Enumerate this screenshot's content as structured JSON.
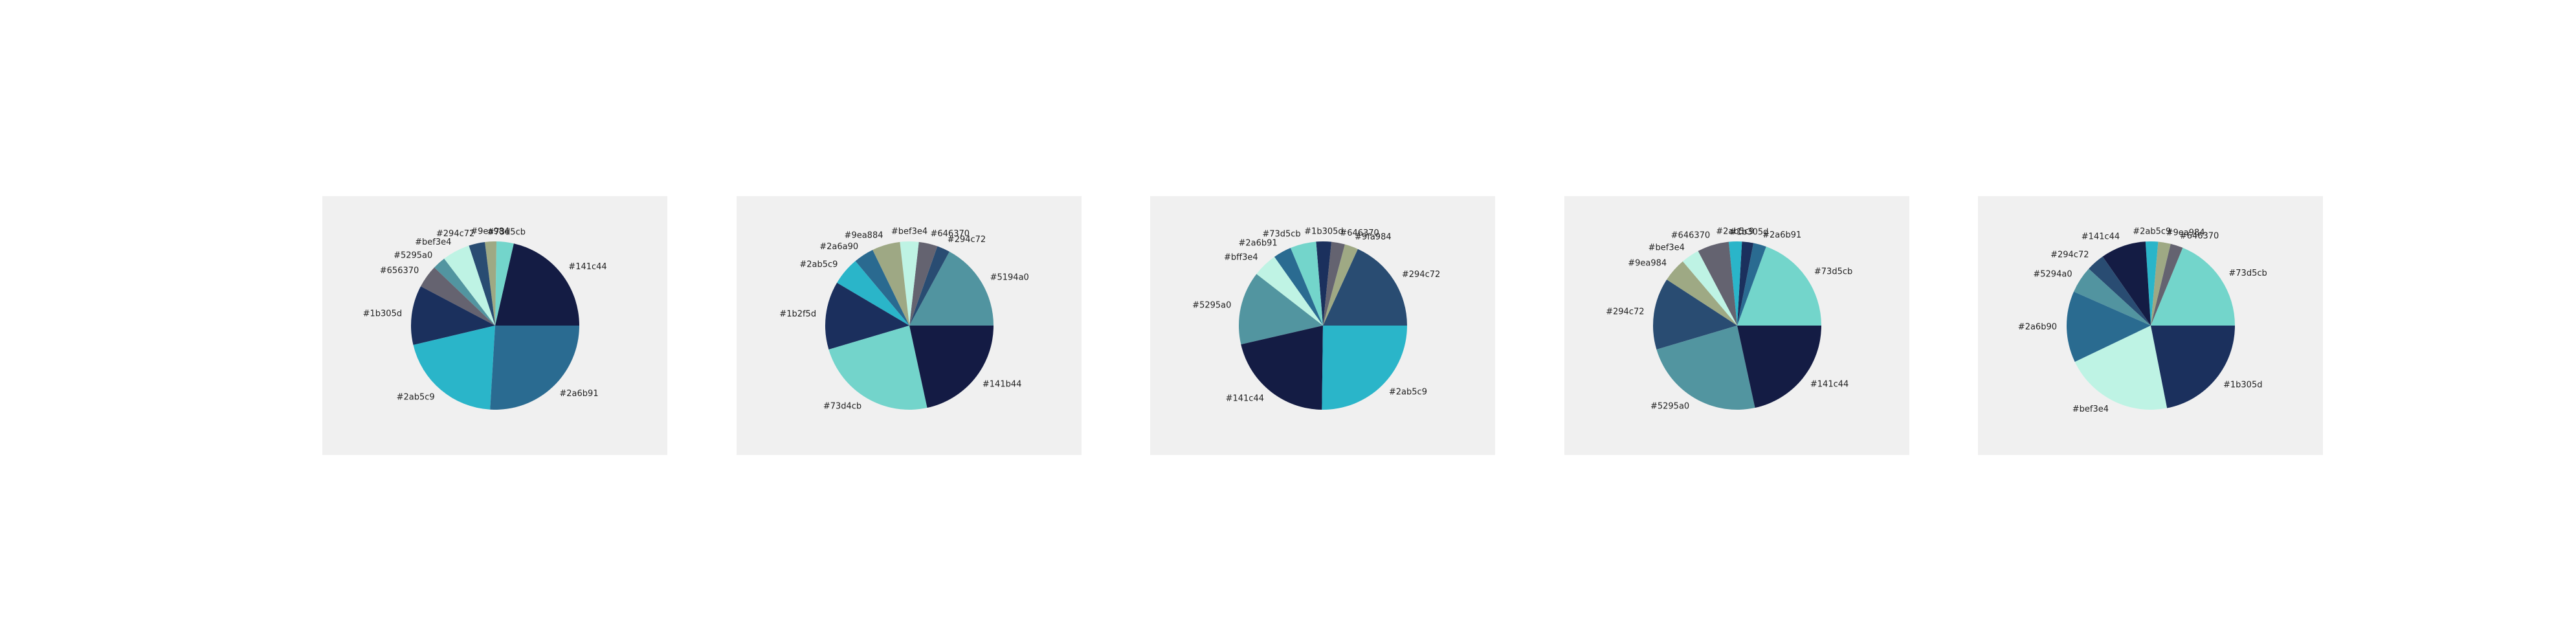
{
  "chart_data": [
    {
      "type": "pie",
      "slices": [
        {
          "label": "#141c44",
          "value": 21.4,
          "color": "#141c44"
        },
        {
          "label": "#73d5cb",
          "value": 3.3,
          "color": "#73d5cb"
        },
        {
          "label": "#9ea984",
          "value": 2.2,
          "color": "#9ea984"
        },
        {
          "label": "#294c72",
          "value": 3.1,
          "color": "#294c72"
        },
        {
          "label": "#bef3e4",
          "value": 5.3,
          "color": "#bef3e4"
        },
        {
          "label": "#5295a0",
          "value": 2.5,
          "color": "#5295a0"
        },
        {
          "label": "#656370",
          "value": 4.4,
          "color": "#656370"
        },
        {
          "label": "#1b305d",
          "value": 11.4,
          "color": "#1b305d"
        },
        {
          "label": "#2ab5c9",
          "value": 20.3,
          "color": "#2ab5c9"
        },
        {
          "label": "#2a6b91",
          "value": 25.9,
          "color": "#2a6b91"
        }
      ]
    },
    {
      "type": "pie",
      "slices": [
        {
          "label": "#5194a0",
          "value": 17.1,
          "color": "#5194a0"
        },
        {
          "label": "#294c72",
          "value": 2.5,
          "color": "#294c72"
        },
        {
          "label": "#646370",
          "value": 3.6,
          "color": "#646370"
        },
        {
          "label": "#bef3e4",
          "value": 3.6,
          "color": "#bef3e4"
        },
        {
          "label": "#9ea884",
          "value": 5.4,
          "color": "#9ea884"
        },
        {
          "label": "#2a6a90",
          "value": 3.9,
          "color": "#2a6a90"
        },
        {
          "label": "#2ab5c9",
          "value": 5.4,
          "color": "#2ab5c9"
        },
        {
          "label": "#1b2f5d",
          "value": 13.1,
          "color": "#1b2f5d"
        },
        {
          "label": "#73d4cb",
          "value": 23.8,
          "color": "#73d4cb"
        },
        {
          "label": "#141b44",
          "value": 21.6,
          "color": "#141b44"
        }
      ]
    },
    {
      "type": "pie",
      "slices": [
        {
          "label": "#294c72",
          "value": 18.2,
          "color": "#294c72"
        },
        {
          "label": "#9fa984",
          "value": 2.6,
          "color": "#9fa984"
        },
        {
          "label": "#646370",
          "value": 2.6,
          "color": "#646370"
        },
        {
          "label": "#1b305d",
          "value": 2.9,
          "color": "#1b305d"
        },
        {
          "label": "#73d5cb",
          "value": 5.0,
          "color": "#73d5cb"
        },
        {
          "label": "#2a6b91",
          "value": 3.5,
          "color": "#2a6b91"
        },
        {
          "label": "#bff3e4",
          "value": 4.7,
          "color": "#bff3e4"
        },
        {
          "label": "#5295a0",
          "value": 14.1,
          "color": "#5295a0"
        },
        {
          "label": "#141c44",
          "value": 21.2,
          "color": "#141c44"
        },
        {
          "label": "#2ab5c9",
          "value": 25.2,
          "color": "#2ab5c9"
        }
      ]
    },
    {
      "type": "pie",
      "slices": [
        {
          "label": "#73d5cb",
          "value": 19.4,
          "color": "#73d5cb"
        },
        {
          "label": "#2a6b91",
          "value": 2.5,
          "color": "#2a6b91"
        },
        {
          "label": "#1b305d",
          "value": 2.2,
          "color": "#1b305d"
        },
        {
          "label": "#2ab5c9",
          "value": 2.5,
          "color": "#2ab5c9"
        },
        {
          "label": "#646370",
          "value": 6.1,
          "color": "#646370"
        },
        {
          "label": "#bef3e4",
          "value": 3.5,
          "color": "#bef3e4"
        },
        {
          "label": "#9ea984",
          "value": 4.6,
          "color": "#9ea984"
        },
        {
          "label": "#294c72",
          "value": 13.8,
          "color": "#294c72"
        },
        {
          "label": "#5295a0",
          "value": 23.8,
          "color": "#5295a0"
        },
        {
          "label": "#141c44",
          "value": 21.6,
          "color": "#141c44"
        }
      ]
    },
    {
      "type": "pie",
      "slices": [
        {
          "label": "#73d5cb",
          "value": 18.8,
          "color": "#73d5cb"
        },
        {
          "label": "#646370",
          "value": 2.4,
          "color": "#646370"
        },
        {
          "label": "#9ea984",
          "value": 2.4,
          "color": "#9ea984"
        },
        {
          "label": "#2ab5c9",
          "value": 2.4,
          "color": "#2ab5c9"
        },
        {
          "label": "#141c44",
          "value": 8.7,
          "color": "#141c44"
        },
        {
          "label": "#294c72",
          "value": 3.5,
          "color": "#294c72"
        },
        {
          "label": "#5294a0",
          "value": 5.2,
          "color": "#5294a0"
        },
        {
          "label": "#2a6b90",
          "value": 13.7,
          "color": "#2a6b90"
        },
        {
          "label": "#bef3e4",
          "value": 21.0,
          "color": "#bef3e4"
        },
        {
          "label": "#1b305d",
          "value": 21.9,
          "color": "#1b305d"
        }
      ]
    }
  ]
}
